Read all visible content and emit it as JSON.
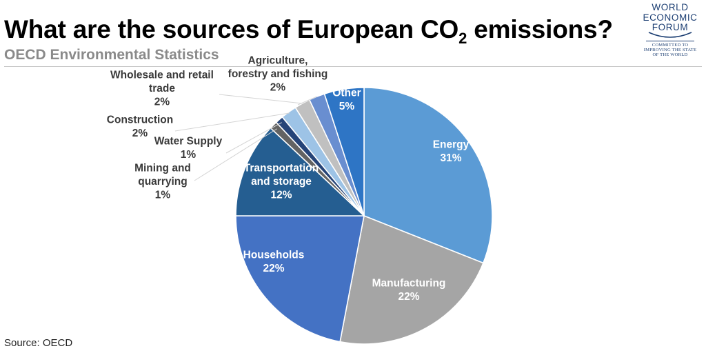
{
  "header": {
    "title_main": "What are the sources of European CO",
    "title_sub": "2",
    "title_end": " emissions?",
    "subtitle": "OECD Environmental Statistics"
  },
  "logo": {
    "line1": "WORLD",
    "line2": "ECONOMIC",
    "line3": "FORUM",
    "tag1": "COMMITTED TO",
    "tag2": "IMPROVING THE STATE",
    "tag3": "OF THE WORLD"
  },
  "footer": {
    "source": "Source: OECD"
  },
  "chart_data": {
    "type": "pie",
    "title": "What are the sources of European CO2 emissions?",
    "subtitle": "OECD Environmental Statistics",
    "unit": "%",
    "slices": [
      {
        "label": "Energy",
        "label_lines": [
          "Energy",
          "31%"
        ],
        "value": 31,
        "display": "31%",
        "color": "#5b9bd5",
        "label_color": "#ffffff"
      },
      {
        "label": "Manufacturing",
        "label_lines": [
          "Manufacturing",
          "22%"
        ],
        "value": 22,
        "display": "22%",
        "color": "#a5a5a5",
        "label_color": "#ffffff"
      },
      {
        "label": "Households",
        "label_lines": [
          "Households",
          "22%"
        ],
        "value": 22,
        "display": "22%",
        "color": "#4472c4",
        "label_color": "#ffffff"
      },
      {
        "label": "Transportation and storage",
        "label_lines": [
          "Transportation",
          "and storage",
          "12%"
        ],
        "value": 12,
        "display": "12%",
        "color": "#255e91",
        "label_color": "#ffffff"
      },
      {
        "label": "Mining and quarrying",
        "label_lines": [
          "Mining and",
          "quarrying",
          "1%"
        ],
        "value": 1,
        "display": "1%",
        "color": "#636363",
        "label_color": "#3a3a3a"
      },
      {
        "label": "Water Supply",
        "label_lines": [
          "Water Supply",
          "1%"
        ],
        "value": 1,
        "display": "1%",
        "color": "#264478",
        "label_color": "#3a3a3a"
      },
      {
        "label": "Construction",
        "label_lines": [
          "Construction",
          "2%"
        ],
        "value": 2,
        "display": "2%",
        "color": "#9dc3e6",
        "label_color": "#3a3a3a"
      },
      {
        "label": "Wholesale and retail trade",
        "label_lines": [
          "Wholesale and retail",
          "trade",
          "2%"
        ],
        "value": 2,
        "display": "2%",
        "color": "#c0c0c0",
        "label_color": "#3a3a3a"
      },
      {
        "label": "Agriculture, forestry and fishing",
        "label_lines": [
          "Agriculture,",
          "forestry and fishing",
          "2%"
        ],
        "value": 2,
        "display": "2%",
        "color": "#698ed0",
        "label_color": "#3a3a3a"
      },
      {
        "label": "Other",
        "label_lines": [
          "Other",
          "5%"
        ],
        "value": 5,
        "display": "5%",
        "color": "#2e75c5",
        "label_color": "#ffffff"
      }
    ]
  }
}
